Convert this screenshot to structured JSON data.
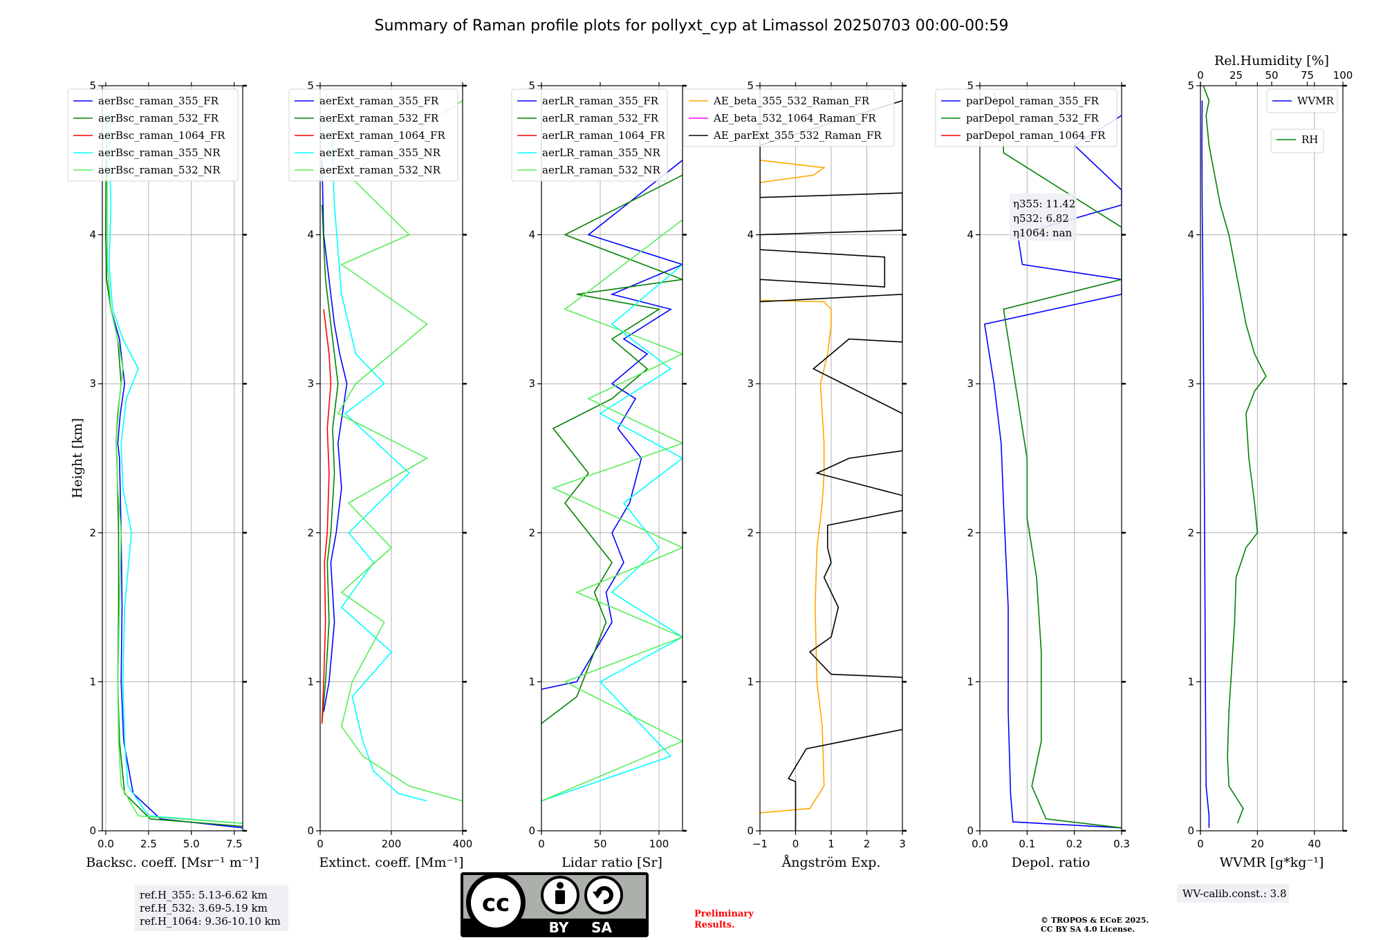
{
  "title": "Summary of Raman profile plots for pollyxt_cyp at Limassol 20250703 00:00-00:59",
  "chart_data": [
    {
      "type": "line",
      "xlabel": "Backsc. coeff. [Msr⁻¹ m⁻¹]",
      "ylabel": "Height [km]",
      "xlim": [
        -0.2,
        8
      ],
      "ylim": [
        0,
        5
      ],
      "xticks": [
        0,
        2.5,
        5,
        7.5
      ],
      "xtick_labels": [
        "0.0",
        "2.5",
        "5.0",
        "7.5"
      ],
      "yticks": [
        0,
        1,
        2,
        3,
        4,
        5
      ],
      "grid": true,
      "legend_position": "top",
      "series": [
        {
          "name": "aerBsc_raman_355_FR",
          "color": "#0000ff",
          "x": [
            8,
            3.2,
            1.6,
            1.05,
            0.9,
            0.95,
            0.9,
            0.8,
            0.7,
            0.85,
            1.1,
            0.8,
            0.3,
            0.05,
            0.0,
            0.02
          ],
          "y": [
            0.02,
            0.08,
            0.25,
            0.6,
            1.0,
            1.5,
            2.0,
            2.5,
            2.6,
            2.8,
            3.0,
            3.3,
            3.5,
            3.7,
            4.0,
            4.5
          ]
        },
        {
          "name": "aerBsc_raman_532_FR",
          "color": "#008000",
          "x": [
            8,
            2.6,
            1.1,
            0.8,
            0.7,
            0.75,
            0.75,
            0.65,
            0.6,
            0.7,
            0.9,
            0.7,
            0.3,
            0.05,
            0.0,
            0.02
          ],
          "y": [
            0.03,
            0.08,
            0.25,
            0.6,
            1.0,
            1.5,
            2.0,
            2.5,
            2.6,
            2.8,
            3.0,
            3.3,
            3.5,
            3.7,
            4.0,
            4.5
          ]
        },
        {
          "name": "aerBsc_raman_1064_FR",
          "color": "#ff0000",
          "x": [],
          "y": []
        },
        {
          "name": "aerBsc_raman_355_NR",
          "color": "#00ffff",
          "x": [
            8,
            2.5,
            1.3,
            1.1,
            1.0,
            1.1,
            1.5,
            1.0,
            0.9,
            1.2,
            1.9,
            1.0,
            0.4,
            0.2,
            0.3,
            0.2,
            0.4
          ],
          "y": [
            0.05,
            0.1,
            0.3,
            0.6,
            1.0,
            1.5,
            2.0,
            2.3,
            2.6,
            2.9,
            3.1,
            3.3,
            3.5,
            3.8,
            4.2,
            4.6,
            4.9
          ]
        },
        {
          "name": "aerBsc_raman_532_NR",
          "color": "#55ee55",
          "x": [
            8,
            1.9,
            0.9,
            0.75,
            0.7,
            0.8,
            0.9,
            0.7,
            0.6,
            0.8,
            1.0,
            0.7,
            0.3,
            0.1,
            0.1,
            0.05
          ],
          "y": [
            0.05,
            0.1,
            0.3,
            0.6,
            1.0,
            1.5,
            2.0,
            2.3,
            2.6,
            2.9,
            3.1,
            3.3,
            3.5,
            3.8,
            4.2,
            4.8
          ]
        }
      ]
    },
    {
      "type": "line",
      "xlabel": "Extinct. coeff. [Mm⁻¹]",
      "xlim": [
        0,
        400
      ],
      "ylim": [
        0,
        5
      ],
      "xticks": [
        0,
        200,
        400
      ],
      "xtick_labels": [
        "0",
        "200",
        "400"
      ],
      "yticks": [
        0,
        1,
        2,
        3,
        4,
        5
      ],
      "grid": true,
      "legend_position": "top",
      "series": [
        {
          "name": "aerExt_raman_355_FR",
          "color": "#0000ff",
          "x": [
            10,
            25,
            40,
            30,
            45,
            60,
            50,
            75,
            55,
            40,
            30,
            10,
            5
          ],
          "y": [
            0.8,
            1.0,
            1.4,
            1.8,
            2.0,
            2.3,
            2.6,
            3.0,
            3.2,
            3.4,
            3.6,
            4.0,
            4.5
          ]
        },
        {
          "name": "aerExt_raman_532_FR",
          "color": "#008000",
          "x": [
            5,
            15,
            25,
            20,
            30,
            40,
            35,
            50,
            40,
            30,
            15,
            5
          ],
          "y": [
            0.72,
            1.0,
            1.4,
            1.8,
            2.0,
            2.4,
            2.7,
            3.0,
            3.2,
            3.4,
            3.7,
            4.2
          ]
        },
        {
          "name": "aerExt_raman_1064_FR",
          "color": "#ff0000",
          "x": [
            5,
            10,
            15,
            12,
            20,
            25,
            20,
            30,
            25,
            10
          ],
          "y": [
            0.72,
            1.0,
            1.4,
            1.8,
            2.0,
            2.4,
            2.7,
            3.0,
            3.2,
            3.5
          ]
        },
        {
          "name": "aerExt_raman_355_NR",
          "color": "#00ffff",
          "x": [
            300,
            220,
            150,
            120,
            90,
            200,
            60,
            150,
            80,
            250,
            70,
            180,
            100,
            60,
            40,
            30
          ],
          "y": [
            0.2,
            0.25,
            0.4,
            0.6,
            0.9,
            1.2,
            1.5,
            1.8,
            2.0,
            2.4,
            2.8,
            3.0,
            3.2,
            3.6,
            4.2,
            4.8
          ]
        },
        {
          "name": "aerExt_raman_532_NR",
          "color": "#55ee55",
          "x": [
            400,
            250,
            120,
            60,
            90,
            180,
            60,
            200,
            80,
            300,
            50,
            100,
            300,
            60,
            250,
            80,
            400
          ],
          "y": [
            0.2,
            0.3,
            0.5,
            0.7,
            1.0,
            1.4,
            1.6,
            1.9,
            2.2,
            2.5,
            2.8,
            3.0,
            3.4,
            3.8,
            4.0,
            4.4,
            4.9
          ]
        }
      ]
    },
    {
      "type": "line",
      "xlabel": "Lidar ratio [Sr]",
      "xlim": [
        0,
        120
      ],
      "ylim": [
        0,
        5
      ],
      "xticks": [
        0,
        50,
        100
      ],
      "xtick_labels": [
        "0",
        "50",
        "100"
      ],
      "yticks": [
        0,
        1,
        2,
        3,
        4,
        5
      ],
      "grid": true,
      "legend_position": "top",
      "series": [
        {
          "name": "aerLR_raman_355_FR",
          "color": "#0000ff",
          "x": [
            0,
            30,
            45,
            60,
            55,
            70,
            60,
            75,
            85,
            65,
            80,
            60,
            90,
            70,
            110,
            60,
            120,
            40,
            120
          ],
          "y": [
            0.95,
            1.0,
            1.2,
            1.4,
            1.6,
            1.8,
            2.0,
            2.2,
            2.5,
            2.7,
            2.9,
            3.0,
            3.2,
            3.3,
            3.5,
            3.6,
            3.8,
            4.0,
            4.5
          ]
        },
        {
          "name": "aerLR_raman_532_FR",
          "color": "#008000",
          "x": [
            0,
            30,
            40,
            55,
            45,
            60,
            40,
            20,
            40,
            10,
            60,
            90,
            60,
            100,
            30,
            120,
            20,
            120
          ],
          "y": [
            0.72,
            0.9,
            1.1,
            1.4,
            1.6,
            1.8,
            2.0,
            2.2,
            2.4,
            2.7,
            2.9,
            3.1,
            3.3,
            3.5,
            3.6,
            3.7,
            4.0,
            4.4
          ]
        },
        {
          "name": "aerLR_raman_1064_FR",
          "color": "#ff0000",
          "x": [],
          "y": []
        },
        {
          "name": "aerLR_raman_355_NR",
          "color": "#00ffff",
          "x": [
            0,
            110,
            50,
            120,
            60,
            100,
            70,
            120,
            50,
            110,
            60,
            120
          ],
          "y": [
            0.2,
            0.5,
            1.0,
            1.3,
            1.6,
            1.9,
            2.2,
            2.5,
            2.8,
            3.1,
            3.4,
            3.8
          ]
        },
        {
          "name": "aerLR_raman_532_NR",
          "color": "#55ee55",
          "x": [
            0,
            120,
            20,
            120,
            30,
            120,
            10,
            120,
            40,
            120,
            20,
            120
          ],
          "y": [
            0.2,
            0.6,
            1.0,
            1.3,
            1.6,
            1.9,
            2.3,
            2.6,
            2.9,
            3.2,
            3.5,
            4.1
          ]
        }
      ]
    },
    {
      "type": "line",
      "xlabel": "Ångström Exp.",
      "xlim": [
        -1,
        3
      ],
      "ylim": [
        0,
        5
      ],
      "xticks": [
        -1,
        0,
        1,
        2,
        3
      ],
      "xtick_labels": [
        "−1",
        "0",
        "1",
        "2",
        "3"
      ],
      "yticks": [
        0,
        1,
        2,
        3,
        4,
        5
      ],
      "grid": true,
      "legend_position": "top",
      "series": [
        {
          "name": "AE_beta_355_532_Raman_FR",
          "color": "#ffa500",
          "x": [
            -1,
            0.4,
            0.8,
            0.75,
            0.6,
            0.55,
            0.6,
            0.75,
            0.8,
            0.8,
            0.75,
            0.7,
            0.9,
            1.0,
            1.0,
            0.8,
            -1,
            -1,
            0.5,
            0.8,
            -1,
            -1
          ],
          "y": [
            0.12,
            0.15,
            0.3,
            0.7,
            1.0,
            1.5,
            1.9,
            2.2,
            2.4,
            2.6,
            2.8,
            3.0,
            3.2,
            3.4,
            3.5,
            3.55,
            3.56,
            4.35,
            4.4,
            4.45,
            4.5,
            4.9
          ]
        },
        {
          "name": "AE_beta_532_1064_Raman_FR",
          "color": "#ff00ff",
          "x": [],
          "y": []
        },
        {
          "name": "AE_parExt_355_532_Raman_FR",
          "color": "#000000",
          "x": [
            0,
            0,
            -0.2,
            0.3,
            3,
            3,
            1.0,
            0.4,
            1.0,
            1.2,
            0.8,
            1.0,
            0.9,
            0.9,
            3,
            3,
            0.6,
            1.5,
            3,
            3,
            0.5,
            1.5,
            3,
            3,
            -1,
            -1,
            2.5,
            2.5,
            -1,
            -1,
            3,
            3,
            -1,
            -1,
            3
          ],
          "y": [
            0.0,
            0.33,
            0.35,
            0.55,
            0.68,
            1.03,
            1.05,
            1.2,
            1.3,
            1.5,
            1.7,
            1.8,
            1.9,
            2.05,
            2.15,
            2.25,
            2.4,
            2.5,
            2.55,
            2.8,
            3.1,
            3.3,
            3.28,
            3.6,
            3.55,
            3.7,
            3.65,
            3.85,
            3.9,
            4.0,
            4.03,
            4.28,
            4.25,
            4.6,
            4.9
          ]
        }
      ]
    },
    {
      "type": "line",
      "xlabel": "Depol. ratio",
      "xlim": [
        0,
        0.3
      ],
      "ylim": [
        0,
        5
      ],
      "xticks": [
        0,
        0.1,
        0.2,
        0.3
      ],
      "xtick_labels": [
        "0.0",
        "0.1",
        "0.2",
        "0.3"
      ],
      "yticks": [
        0,
        1,
        2,
        3,
        4,
        5
      ],
      "grid": true,
      "legend_position": "top",
      "series": [
        {
          "name": "parDepol_raman_355_FR",
          "color": "#0000ff",
          "x": [
            0.3,
            0.07,
            0.065,
            0.06,
            0.06,
            0.05,
            0.045,
            0.03,
            0.01,
            0.3,
            0.3,
            0.09,
            0.08,
            0.3,
            0.3,
            0.2,
            0.3
          ],
          "y": [
            0.02,
            0.06,
            0.25,
            0.8,
            1.5,
            2.2,
            2.6,
            3.0,
            3.4,
            3.6,
            3.7,
            3.8,
            4.0,
            4.2,
            4.3,
            4.6,
            4.8
          ]
        },
        {
          "name": "parDepol_raman_532_FR",
          "color": "#008000",
          "x": [
            0.3,
            0.14,
            0.11,
            0.13,
            0.13,
            0.12,
            0.1,
            0.1,
            0.08,
            0.05,
            0.3,
            0.3,
            0.3,
            0.05,
            0.05,
            0.03
          ],
          "y": [
            0.02,
            0.08,
            0.3,
            0.6,
            1.2,
            1.7,
            2.1,
            2.5,
            2.9,
            3.5,
            3.7,
            3.95,
            4.05,
            4.55,
            4.7,
            4.95
          ]
        },
        {
          "name": "parDepol_raman_1064_FR",
          "color": "#ff0000",
          "x": [],
          "y": []
        }
      ],
      "annotation": [
        "η355: 11.42",
        "η532: 6.82",
        "η1064: nan"
      ]
    },
    {
      "type": "line",
      "xlabel": "WVMR [g*kg⁻¹]",
      "x2label": "Rel.Humidity [%]",
      "xlim": [
        0,
        50
      ],
      "x2lim": [
        0,
        100
      ],
      "ylim": [
        0,
        5
      ],
      "xticks": [
        0,
        20,
        40
      ],
      "xtick_labels": [
        "0",
        "20",
        "40"
      ],
      "x2ticks": [
        0,
        25,
        50,
        75,
        100
      ],
      "x2tick_labels": [
        "0",
        "25",
        "50",
        "75",
        "100"
      ],
      "yticks": [
        0,
        1,
        2,
        3,
        4,
        5
      ],
      "grid": true,
      "legend_position": "top-right",
      "series": [
        {
          "name": "WVMR",
          "color": "#0000ff",
          "x": [
            3,
            3,
            2,
            1.8,
            1.6,
            1.4,
            1.2,
            1.0,
            0.8,
            0.6,
            0.5,
            0.6
          ],
          "y": [
            0.02,
            0.1,
            0.3,
            0.8,
            1.5,
            2.2,
            2.8,
            3.4,
            3.8,
            4.2,
            4.6,
            4.9
          ]
        },
        {
          "name": "RH",
          "color": "#008000",
          "x": [
            13,
            15,
            10,
            9.5,
            10,
            11,
            12,
            12.5,
            16,
            20,
            19,
            17,
            16,
            19,
            23,
            19,
            16,
            14,
            12,
            10,
            7,
            5,
            3,
            2,
            3,
            1
          ],
          "y": [
            0.05,
            0.15,
            0.3,
            0.5,
            0.8,
            1.1,
            1.4,
            1.7,
            1.9,
            2.0,
            2.2,
            2.5,
            2.8,
            2.95,
            3.05,
            3.2,
            3.4,
            3.6,
            3.8,
            4.0,
            4.2,
            4.4,
            4.6,
            4.8,
            4.9,
            5.0
          ]
        }
      ]
    }
  ],
  "ref_heights": [
    "ref.H_355: 5.13-6.62 km",
    "ref.H_532: 3.69-5.19 km",
    "ref.H_1064: 9.36-10.10 km"
  ],
  "wv_calib": "WV-calib.const.: 3.8",
  "cc_badge": {
    "left": "BY",
    "right": "SA",
    "logo": "cc"
  },
  "preliminary": [
    "Preliminary",
    "Results."
  ],
  "copyright": [
    "© TROPOS & ECoE 2025.",
    "CC BY SA 4.0 License."
  ],
  "colors": {
    "preliminary": "#ff0000",
    "grid": "#b0b0b0",
    "box": "#eef0f4"
  }
}
